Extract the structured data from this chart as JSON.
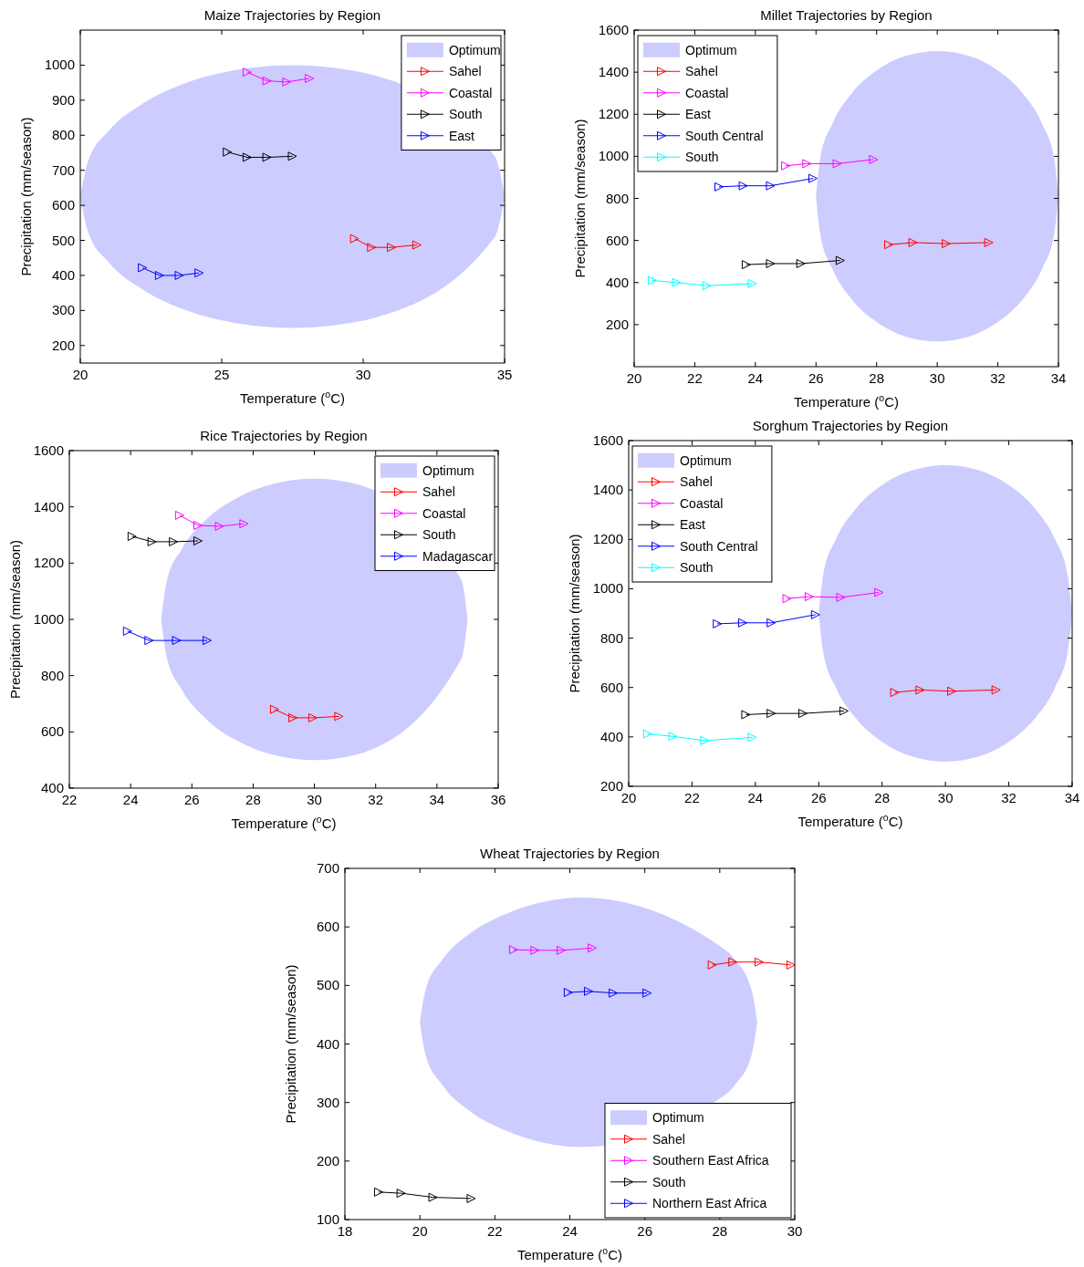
{
  "chart_data": [
    {
      "type": "line",
      "title": "Maize Trajectories by Region",
      "xlabel": "Temperature ($^{o}$C)",
      "ylabel": "Precipitation (mm/season)",
      "xlim": [
        20,
        35
      ],
      "xticks": [
        20,
        25,
        30,
        35
      ],
      "ylim": [
        150,
        1100
      ],
      "yticks": [
        200,
        300,
        400,
        500,
        600,
        700,
        800,
        900,
        1000
      ],
      "grid": false,
      "legend": "top right",
      "marker": "triangle",
      "line_style": "solid",
      "series": [
        {
          "name": "Optimum",
          "type": "area",
          "color": "#ccccff",
          "x": [
            20,
            20.26,
            21.01,
            22.2,
            23.75,
            25.56,
            27.5,
            29.44,
            30.3,
            34.6,
            34.75,
            35
          ],
          "values": [
            null,
            null,
            null,
            null,
            null,
            null,
            null,
            null,
            null,
            null,
            null,
            null
          ],
          "upper": [
            625,
            722,
            813,
            890,
            950,
            987,
            1000,
            987,
            973,
            746,
            722,
            625
          ],
          "lower": [
            625,
            528,
            437,
            360,
            300,
            263,
            250,
            263,
            277,
            504,
            528,
            625
          ]
        },
        {
          "name": "Sahel",
          "color": "#ff0000",
          "x": [
            29.7,
            30.3,
            31.0,
            31.9
          ],
          "values": [
            505,
            480,
            480,
            487
          ]
        },
        {
          "name": "Coastal",
          "color": "#ff00ff",
          "x": [
            25.9,
            26.6,
            27.3,
            28.1
          ],
          "values": [
            980,
            955,
            952,
            962
          ]
        },
        {
          "name": "South",
          "color": "#000000",
          "x": [
            25.2,
            25.9,
            26.6,
            27.5
          ],
          "values": [
            752,
            737,
            737,
            740
          ]
        },
        {
          "name": "East",
          "color": "#0000ff",
          "x": [
            22.2,
            22.8,
            23.5,
            24.2
          ],
          "values": [
            422,
            400,
            400,
            407
          ]
        }
      ]
    },
    {
      "type": "line",
      "title": "Millet Trajectories by Region",
      "xlabel": "Temperature ($^{o}$C)",
      "ylabel": "Precipitation (mm/season)",
      "xlim": [
        20,
        34
      ],
      "xticks": [
        20,
        22,
        24,
        26,
        28,
        30,
        32,
        34
      ],
      "ylim": [
        0,
        1600
      ],
      "yticks": [
        200,
        400,
        600,
        800,
        1000,
        1200,
        1400,
        1600
      ],
      "grid": false,
      "legend": "top left",
      "marker": "triangle",
      "line_style": "solid",
      "series": [
        {
          "name": "Optimum",
          "type": "area",
          "color": "#ccccff",
          "x": [
            26,
            26.14,
            26.54,
            27.17,
            28,
            28.96,
            30,
            31.04,
            32,
            32.83,
            33.46,
            33.86,
            34
          ],
          "values": [
            null,
            null,
            null,
            null,
            null,
            null,
            null,
            null,
            null,
            null,
            null,
            null,
            null
          ],
          "upper": [
            810,
            989,
            1155,
            1298,
            1408,
            1477,
            1500,
            1477,
            1408,
            1298,
            1155,
            989,
            810
          ],
          "lower": [
            810,
            631,
            465,
            322,
            212,
            143,
            120,
            143,
            212,
            322,
            465,
            631,
            810
          ]
        },
        {
          "name": "Sahel",
          "color": "#ff0000",
          "x": [
            28.4,
            29.2,
            30.3,
            31.7
          ],
          "values": [
            580,
            590,
            585,
            590
          ]
        },
        {
          "name": "Coastal",
          "color": "#ff00ff",
          "x": [
            25.0,
            25.7,
            26.7,
            27.9
          ],
          "values": [
            955,
            965,
            965,
            985
          ]
        },
        {
          "name": "East",
          "color": "#000000",
          "x": [
            23.7,
            24.5,
            25.5,
            26.8
          ],
          "values": [
            485,
            490,
            490,
            505
          ]
        },
        {
          "name": "South Central",
          "color": "#0000ff",
          "x": [
            22.8,
            23.6,
            24.5,
            25.9
          ],
          "values": [
            855,
            860,
            860,
            895
          ]
        },
        {
          "name": "South",
          "color": "#00ffff",
          "x": [
            20.6,
            21.4,
            22.4,
            23.9
          ],
          "values": [
            410,
            400,
            385,
            395
          ]
        }
      ]
    },
    {
      "type": "line",
      "title": "Rice Trajectories by Region",
      "xlabel": "Temperature ($^{o}$C)",
      "ylabel": "Precipitation (mm/season)",
      "xlim": [
        22,
        36
      ],
      "xticks": [
        22,
        24,
        26,
        28,
        30,
        32,
        34,
        36
      ],
      "ylim": [
        400,
        1600
      ],
      "yticks": [
        400,
        600,
        800,
        1000,
        1200,
        1400,
        1600
      ],
      "grid": false,
      "legend": "top right",
      "marker": "triangle",
      "line_style": "solid",
      "series": [
        {
          "name": "Optimum",
          "type": "area",
          "color": "#ccccff",
          "x": [
            25,
            25.17,
            25.67,
            26.46,
            27.5,
            28.71,
            30,
            31.29,
            34.8,
            35
          ],
          "values": [
            null,
            null,
            null,
            null,
            null,
            null,
            null,
            null,
            null,
            null
          ],
          "upper": [
            1000,
            1130,
            1250,
            1354,
            1433,
            1483,
            1500,
            1483,
            1140,
            1000
          ],
          "lower": [
            1000,
            870,
            750,
            646,
            567,
            517,
            500,
            517,
            860,
            1000
          ]
        },
        {
          "name": "Sahel",
          "color": "#ff0000",
          "x": [
            28.7,
            29.3,
            29.95,
            30.8
          ],
          "values": [
            680,
            650,
            650,
            655
          ]
        },
        {
          "name": "Coastal",
          "color": "#ff00ff",
          "x": [
            25.6,
            26.2,
            26.9,
            27.7
          ],
          "values": [
            1370,
            1334,
            1331,
            1340
          ]
        },
        {
          "name": "South",
          "color": "#000000",
          "x": [
            24.05,
            24.7,
            25.4,
            26.2
          ],
          "values": [
            1295,
            1276,
            1276,
            1279
          ]
        },
        {
          "name": "Madagascar",
          "color": "#0000ff",
          "x": [
            23.9,
            24.6,
            25.5,
            26.5
          ],
          "values": [
            958,
            925,
            925,
            925
          ]
        }
      ]
    },
    {
      "type": "line",
      "title": "Sorghum Trajectories by Region",
      "xlabel": "Temperature ($^{o}$C)",
      "ylabel": "Precipitation (mm/season)",
      "xlim": [
        20,
        34
      ],
      "xticks": [
        20,
        22,
        24,
        26,
        28,
        30,
        32,
        34
      ],
      "ylim": [
        200,
        1600
      ],
      "yticks": [
        200,
        400,
        600,
        800,
        1000,
        1200,
        1400,
        1600
      ],
      "grid": false,
      "legend": "top left",
      "marker": "triangle",
      "line_style": "solid",
      "series": [
        {
          "name": "Optimum",
          "type": "area",
          "color": "#ccccff",
          "x": [
            26,
            26.14,
            26.54,
            27.17,
            28,
            28.96,
            30,
            31.04,
            32,
            32.83,
            33.46,
            33.86,
            34
          ],
          "values": [
            null,
            null,
            null,
            null,
            null,
            null,
            null,
            null,
            null,
            null,
            null,
            null,
            null
          ],
          "upper": [
            900,
            1055,
            1200,
            1324,
            1420,
            1480,
            1500,
            1480,
            1420,
            1324,
            1200,
            1055,
            900
          ],
          "lower": [
            900,
            745,
            600,
            476,
            380,
            320,
            300,
            320,
            380,
            476,
            600,
            745,
            900
          ]
        },
        {
          "name": "Sahel",
          "color": "#ff0000",
          "x": [
            28.4,
            29.2,
            30.2,
            31.6
          ],
          "values": [
            580,
            590,
            585,
            590
          ]
        },
        {
          "name": "Coastal",
          "color": "#ff00ff",
          "x": [
            25.0,
            25.7,
            26.7,
            27.9
          ],
          "values": [
            960,
            968,
            965,
            985
          ]
        },
        {
          "name": "East",
          "color": "#000000",
          "x": [
            23.7,
            24.5,
            25.5,
            26.8
          ],
          "values": [
            490,
            495,
            495,
            505
          ]
        },
        {
          "name": "South Central",
          "color": "#0000ff",
          "x": [
            22.8,
            23.6,
            24.5,
            25.9
          ],
          "values": [
            858,
            862,
            862,
            895
          ]
        },
        {
          "name": "South",
          "color": "#00ffff",
          "x": [
            20.6,
            21.4,
            22.4,
            23.9
          ],
          "values": [
            412,
            402,
            385,
            398
          ]
        }
      ]
    },
    {
      "type": "line",
      "title": "Wheat Trajectories by Region",
      "xlabel": "Temperature ($^{o}$C)",
      "ylabel": "Precipitation (mm/season)",
      "xlim": [
        18,
        30
      ],
      "xticks": [
        18,
        20,
        22,
        24,
        26,
        28,
        30
      ],
      "ylim": [
        100,
        700
      ],
      "yticks": [
        100,
        200,
        300,
        400,
        500,
        600,
        700
      ],
      "grid": false,
      "legend": "bottom right",
      "marker": "triangle",
      "line_style": "solid",
      "series": [
        {
          "name": "Optimum",
          "type": "area",
          "color": "#ccccff",
          "x": [
            20,
            20.15,
            20.6,
            21.32,
            22.25,
            23.33,
            24.3,
            28.2,
            28.4,
            28.85,
            29
          ],
          "values": [
            null,
            null,
            null,
            null,
            null,
            null,
            null,
            null,
            null,
            null,
            null
          ],
          "upper": [
            437,
            492,
            544,
            588,
            621,
            643,
            650,
            558,
            544,
            492,
            437
          ],
          "lower": [
            437,
            382,
            330,
            286,
            253,
            231,
            224,
            316,
            330,
            382,
            437
          ]
        },
        {
          "name": "Sahel",
          "color": "#ff0000",
          "x": [
            27.8,
            28.35,
            29.05,
            29.9
          ],
          "values": [
            535,
            540,
            540,
            535
          ]
        },
        {
          "name": "Southern East Africa",
          "color": "#ff00ff",
          "x": [
            22.5,
            23.07,
            23.77,
            24.6
          ],
          "values": [
            561,
            560,
            560,
            564
          ]
        },
        {
          "name": "South",
          "color": "#000000",
          "x": [
            18.9,
            19.5,
            20.35,
            21.37
          ],
          "values": [
            147,
            145,
            138,
            136
          ]
        },
        {
          "name": "Northern East Africa",
          "color": "#0000ff",
          "x": [
            23.96,
            24.5,
            25.16,
            26.06
          ],
          "values": [
            488,
            490,
            487,
            487
          ]
        }
      ]
    }
  ]
}
